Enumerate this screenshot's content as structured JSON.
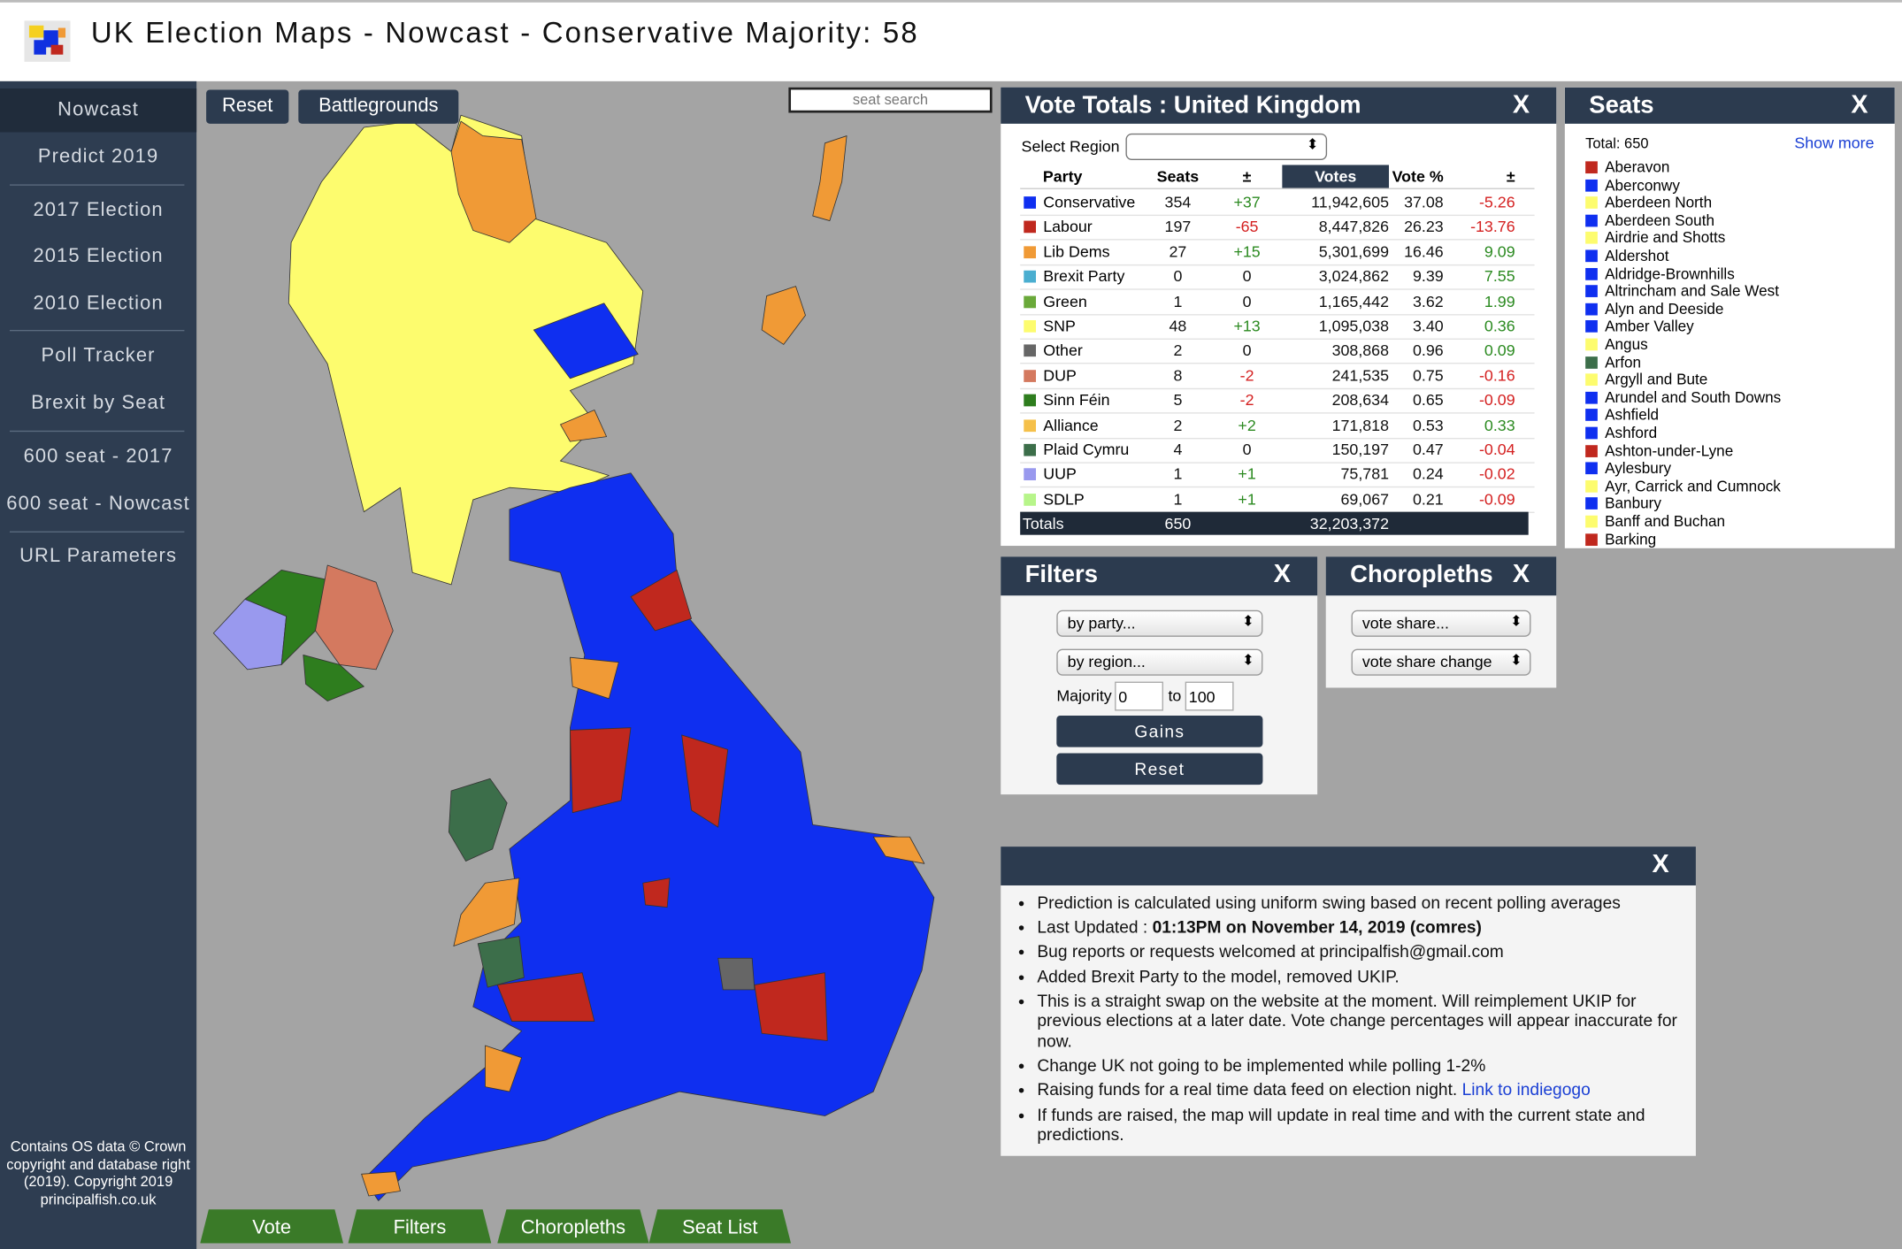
{
  "header": {
    "title": "UK Election Maps - Nowcast - Conservative Majority: 58"
  },
  "sidebar": {
    "nav": [
      "Nowcast",
      "Predict 2019",
      "2017 Election",
      "2015 Election",
      "2010 Election",
      "Poll Tracker",
      "Brexit by Seat",
      "600 seat - 2017",
      "600 seat - Nowcast",
      "URL Parameters"
    ],
    "credit": "Contains OS data © Crown copyright and database right (2019). Copyright 2019 principalfish.co.uk"
  },
  "map_toolbar": {
    "buttons": [
      "Reset",
      "Battlegrounds"
    ],
    "search_placeholder": "seat search"
  },
  "bottom_tabs": [
    "Vote",
    "Filters",
    "Choropleths",
    "Seat List"
  ],
  "vote_totals": {
    "title": "Vote Totals : United Kingdom",
    "close": "X",
    "select_label": "Select Region",
    "columns": [
      "Party",
      "Seats",
      "±",
      "Votes",
      "Vote %",
      "±"
    ],
    "rows": [
      {
        "party": "Conservative",
        "color": "#0f2ff0",
        "seats": "354",
        "change": "+37",
        "votes": "11,942,605",
        "pct": "37.08",
        "pct_change": "-5.26"
      },
      {
        "party": "Labour",
        "color": "#c0281e",
        "seats": "197",
        "change": "-65",
        "votes": "8,447,826",
        "pct": "26.23",
        "pct_change": "-13.76"
      },
      {
        "party": "Lib Dems",
        "color": "#f09a36",
        "seats": "27",
        "change": "+15",
        "votes": "5,301,699",
        "pct": "16.46",
        "pct_change": "9.09"
      },
      {
        "party": "Brexit Party",
        "color": "#4aaed0",
        "seats": "0",
        "change": "0",
        "votes": "3,024,862",
        "pct": "9.39",
        "pct_change": "7.55"
      },
      {
        "party": "Green",
        "color": "#6aa93a",
        "seats": "1",
        "change": "0",
        "votes": "1,165,442",
        "pct": "3.62",
        "pct_change": "1.99"
      },
      {
        "party": "SNP",
        "color": "#fdfc6e",
        "seats": "48",
        "change": "+13",
        "votes": "1,095,038",
        "pct": "3.40",
        "pct_change": "0.36"
      },
      {
        "party": "Other",
        "color": "#666666",
        "seats": "2",
        "change": "0",
        "votes": "308,868",
        "pct": "0.96",
        "pct_change": "0.09"
      },
      {
        "party": "DUP",
        "color": "#d4795f",
        "seats": "8",
        "change": "-2",
        "votes": "241,535",
        "pct": "0.75",
        "pct_change": "-0.16"
      },
      {
        "party": "Sinn Féin",
        "color": "#2e7d1e",
        "seats": "5",
        "change": "-2",
        "votes": "208,634",
        "pct": "0.65",
        "pct_change": "-0.09"
      },
      {
        "party": "Alliance",
        "color": "#f5c04a",
        "seats": "2",
        "change": "+2",
        "votes": "171,818",
        "pct": "0.53",
        "pct_change": "0.33"
      },
      {
        "party": "Plaid Cymru",
        "color": "#3c6e4a",
        "seats": "4",
        "change": "0",
        "votes": "150,197",
        "pct": "0.47",
        "pct_change": "-0.04"
      },
      {
        "party": "UUP",
        "color": "#9999ee",
        "seats": "1",
        "change": "+1",
        "votes": "75,781",
        "pct": "0.24",
        "pct_change": "-0.02"
      },
      {
        "party": "SDLP",
        "color": "#b7f58a",
        "seats": "1",
        "change": "+1",
        "votes": "69,067",
        "pct": "0.21",
        "pct_change": "-0.09"
      }
    ],
    "totals": [
      "Totals",
      "650",
      "32,203,372"
    ]
  },
  "seats": {
    "title": "Seats",
    "close": "X",
    "total": "Total: 650",
    "show_more": "Show more",
    "list": [
      {
        "name": "Aberavon",
        "color": "#c0281e"
      },
      {
        "name": "Aberconwy",
        "color": "#0f2ff0"
      },
      {
        "name": "Aberdeen North",
        "color": "#fdfc6e"
      },
      {
        "name": "Aberdeen South",
        "color": "#0f2ff0"
      },
      {
        "name": "Airdrie and Shotts",
        "color": "#fdfc6e"
      },
      {
        "name": "Aldershot",
        "color": "#0f2ff0"
      },
      {
        "name": "Aldridge-Brownhills",
        "color": "#0f2ff0"
      },
      {
        "name": "Altrincham and Sale West",
        "color": "#0f2ff0"
      },
      {
        "name": "Alyn and Deeside",
        "color": "#0f2ff0"
      },
      {
        "name": "Amber Valley",
        "color": "#0f2ff0"
      },
      {
        "name": "Angus",
        "color": "#fdfc6e"
      },
      {
        "name": "Arfon",
        "color": "#3c6e4a"
      },
      {
        "name": "Argyll and Bute",
        "color": "#fdfc6e"
      },
      {
        "name": "Arundel and South Downs",
        "color": "#0f2ff0"
      },
      {
        "name": "Ashfield",
        "color": "#0f2ff0"
      },
      {
        "name": "Ashford",
        "color": "#0f2ff0"
      },
      {
        "name": "Ashton-under-Lyne",
        "color": "#c0281e"
      },
      {
        "name": "Aylesbury",
        "color": "#0f2ff0"
      },
      {
        "name": "Ayr, Carrick and Cumnock",
        "color": "#fdfc6e"
      },
      {
        "name": "Banbury",
        "color": "#0f2ff0"
      },
      {
        "name": "Banff and Buchan",
        "color": "#fdfc6e"
      },
      {
        "name": "Barking",
        "color": "#c0281e"
      }
    ]
  },
  "filters": {
    "title": "Filters",
    "close": "X",
    "selects": [
      "by party...",
      "by region..."
    ],
    "majority_label": "Majority",
    "majority_from": "0",
    "to_label": "to",
    "majority_to": "100",
    "buttons": [
      "Gains",
      "Reset"
    ]
  },
  "choropleths": {
    "title": "Choropleths",
    "close": "X",
    "selects": [
      "vote share...",
      "vote share change"
    ]
  },
  "info": {
    "close": "X",
    "items": [
      {
        "text": "Prediction is calculated using uniform swing based on recent polling averages"
      },
      {
        "text": "Last Updated : ",
        "bold": "01:13PM on November 14, 2019 (comres)"
      },
      {
        "text": "Bug reports or requests welcomed at principalfish@gmail.com"
      },
      {
        "text": "Added Brexit Party to the model, removed UKIP."
      },
      {
        "text": "This is a straight swap on the website at the moment. Will reimplement UKIP for previous elections at a later date. Vote change percentages will appear inaccurate for now."
      },
      {
        "text": "Change UK not going to be implemented while polling 1-2%"
      },
      {
        "text": "Raising funds for a real time data feed on election night. ",
        "link": "Link to indiegogo"
      },
      {
        "text": "If funds are raised, the map will update in real time and with the current state and predictions."
      }
    ]
  }
}
